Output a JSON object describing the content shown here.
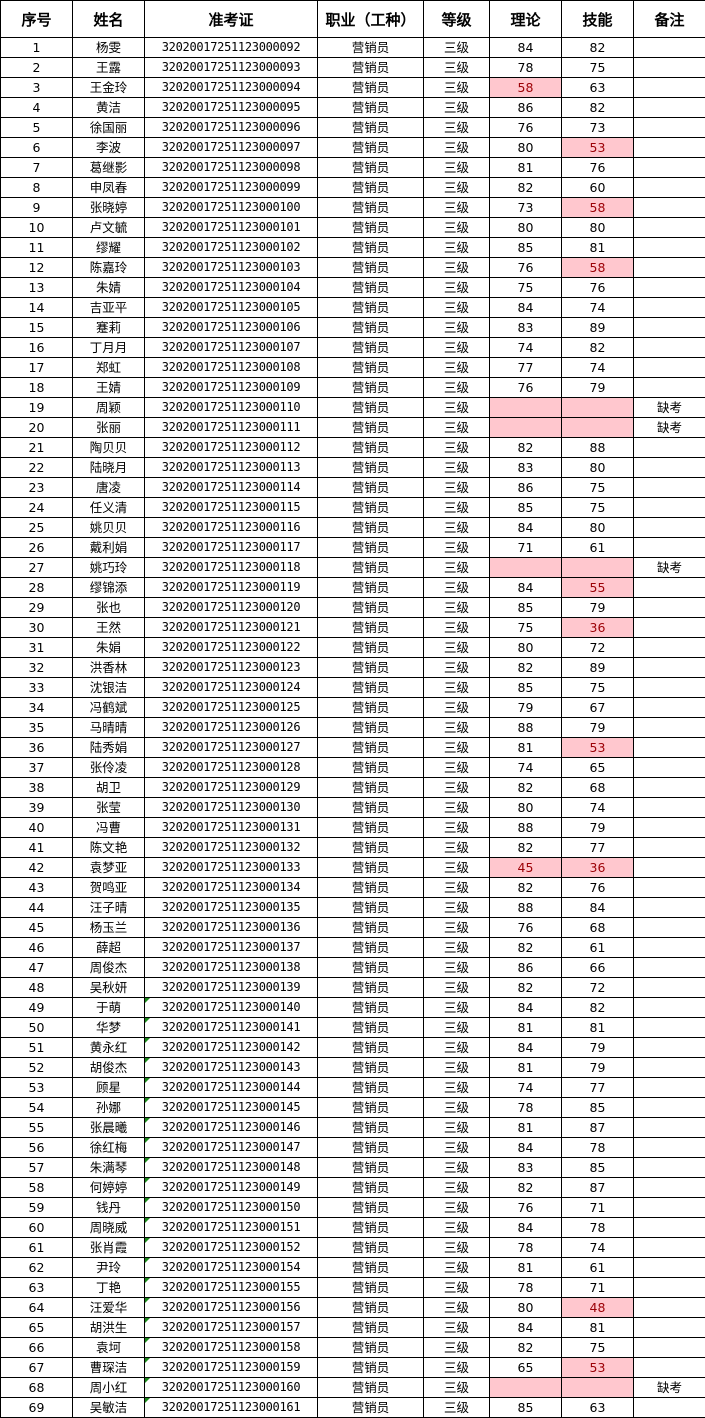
{
  "headers": [
    "序号",
    "姓名",
    "准考证",
    "职业（工种）",
    "等级",
    "理论",
    "技能",
    "备注"
  ],
  "colors": {
    "fail_fill": "#FFC7CE",
    "fail_text": "#9C0006",
    "text_number_marker": "#1a8a1a"
  },
  "text_number_marker_rows": [
    49,
    50,
    51,
    52,
    53,
    54,
    55,
    56,
    57,
    58,
    59,
    60,
    61,
    62,
    63,
    64,
    65,
    66,
    67,
    68,
    69
  ],
  "rows": [
    [
      "1",
      "杨雯",
      "32020017251123000092",
      "营销员",
      "三级",
      "84",
      "82",
      ""
    ],
    [
      "2",
      "王露",
      "32020017251123000093",
      "营销员",
      "三级",
      "78",
      "75",
      ""
    ],
    [
      "3",
      "王金玲",
      "32020017251123000094",
      "营销员",
      "三级",
      "58",
      "63",
      ""
    ],
    [
      "4",
      "黄洁",
      "32020017251123000095",
      "营销员",
      "三级",
      "86",
      "82",
      ""
    ],
    [
      "5",
      "徐国丽",
      "32020017251123000096",
      "营销员",
      "三级",
      "76",
      "73",
      ""
    ],
    [
      "6",
      "李波",
      "32020017251123000097",
      "营销员",
      "三级",
      "80",
      "53",
      ""
    ],
    [
      "7",
      "葛继影",
      "32020017251123000098",
      "营销员",
      "三级",
      "81",
      "76",
      ""
    ],
    [
      "8",
      "申凤春",
      "32020017251123000099",
      "营销员",
      "三级",
      "82",
      "60",
      ""
    ],
    [
      "9",
      "张晓婷",
      "32020017251123000100",
      "营销员",
      "三级",
      "73",
      "58",
      ""
    ],
    [
      "10",
      "卢文毓",
      "32020017251123000101",
      "营销员",
      "三级",
      "80",
      "80",
      ""
    ],
    [
      "11",
      "缪耀",
      "32020017251123000102",
      "营销员",
      "三级",
      "85",
      "81",
      ""
    ],
    [
      "12",
      "陈嘉玲",
      "32020017251123000103",
      "营销员",
      "三级",
      "76",
      "58",
      ""
    ],
    [
      "13",
      "朱婧",
      "32020017251123000104",
      "营销员",
      "三级",
      "75",
      "76",
      ""
    ],
    [
      "14",
      "吉亚平",
      "32020017251123000105",
      "营销员",
      "三级",
      "84",
      "74",
      ""
    ],
    [
      "15",
      "蹇莉",
      "32020017251123000106",
      "营销员",
      "三级",
      "83",
      "89",
      ""
    ],
    [
      "16",
      "丁月月",
      "32020017251123000107",
      "营销员",
      "三级",
      "74",
      "82",
      ""
    ],
    [
      "17",
      "郑虹",
      "32020017251123000108",
      "营销员",
      "三级",
      "77",
      "74",
      ""
    ],
    [
      "18",
      "王婧",
      "32020017251123000109",
      "营销员",
      "三级",
      "76",
      "79",
      ""
    ],
    [
      "19",
      "周颖",
      "32020017251123000110",
      "营销员",
      "三级",
      "",
      "",
      "缺考"
    ],
    [
      "20",
      "张丽",
      "32020017251123000111",
      "营销员",
      "三级",
      "",
      "",
      "缺考"
    ],
    [
      "21",
      "陶贝贝",
      "32020017251123000112",
      "营销员",
      "三级",
      "82",
      "88",
      ""
    ],
    [
      "22",
      "陆晓月",
      "32020017251123000113",
      "营销员",
      "三级",
      "83",
      "80",
      ""
    ],
    [
      "23",
      "唐凌",
      "32020017251123000114",
      "营销员",
      "三级",
      "86",
      "75",
      ""
    ],
    [
      "24",
      "任义清",
      "32020017251123000115",
      "营销员",
      "三级",
      "85",
      "75",
      ""
    ],
    [
      "25",
      "姚贝贝",
      "32020017251123000116",
      "营销员",
      "三级",
      "84",
      "80",
      ""
    ],
    [
      "26",
      "戴利娟",
      "32020017251123000117",
      "营销员",
      "三级",
      "71",
      "61",
      ""
    ],
    [
      "27",
      "姚巧玲",
      "32020017251123000118",
      "营销员",
      "三级",
      "",
      "",
      "缺考"
    ],
    [
      "28",
      "缪锦添",
      "32020017251123000119",
      "营销员",
      "三级",
      "84",
      "55",
      ""
    ],
    [
      "29",
      "张也",
      "32020017251123000120",
      "营销员",
      "三级",
      "85",
      "79",
      ""
    ],
    [
      "30",
      "王然",
      "32020017251123000121",
      "营销员",
      "三级",
      "75",
      "36",
      ""
    ],
    [
      "31",
      "朱娟",
      "32020017251123000122",
      "营销员",
      "三级",
      "80",
      "72",
      ""
    ],
    [
      "32",
      "洪香林",
      "32020017251123000123",
      "营销员",
      "三级",
      "82",
      "89",
      ""
    ],
    [
      "33",
      "沈银洁",
      "32020017251123000124",
      "营销员",
      "三级",
      "85",
      "75",
      ""
    ],
    [
      "34",
      "冯鹤斌",
      "32020017251123000125",
      "营销员",
      "三级",
      "79",
      "67",
      ""
    ],
    [
      "35",
      "马晴晴",
      "32020017251123000126",
      "营销员",
      "三级",
      "88",
      "79",
      ""
    ],
    [
      "36",
      "陆秀娟",
      "32020017251123000127",
      "营销员",
      "三级",
      "81",
      "53",
      ""
    ],
    [
      "37",
      "张伶凌",
      "32020017251123000128",
      "营销员",
      "三级",
      "74",
      "65",
      ""
    ],
    [
      "38",
      "胡卫",
      "32020017251123000129",
      "营销员",
      "三级",
      "82",
      "68",
      ""
    ],
    [
      "39",
      "张莹",
      "32020017251123000130",
      "营销员",
      "三级",
      "80",
      "74",
      ""
    ],
    [
      "40",
      "冯曹",
      "32020017251123000131",
      "营销员",
      "三级",
      "88",
      "79",
      ""
    ],
    [
      "41",
      "陈文艳",
      "32020017251123000132",
      "营销员",
      "三级",
      "82",
      "77",
      ""
    ],
    [
      "42",
      "袁梦亚",
      "32020017251123000133",
      "营销员",
      "三级",
      "45",
      "36",
      ""
    ],
    [
      "43",
      "贺鸣亚",
      "32020017251123000134",
      "营销员",
      "三级",
      "82",
      "76",
      ""
    ],
    [
      "44",
      "汪子晴",
      "32020017251123000135",
      "营销员",
      "三级",
      "88",
      "84",
      ""
    ],
    [
      "45",
      "杨玉兰",
      "32020017251123000136",
      "营销员",
      "三级",
      "76",
      "68",
      ""
    ],
    [
      "46",
      "薛超",
      "32020017251123000137",
      "营销员",
      "三级",
      "82",
      "61",
      ""
    ],
    [
      "47",
      "周俊杰",
      "32020017251123000138",
      "营销员",
      "三级",
      "86",
      "66",
      ""
    ],
    [
      "48",
      "吴秋妍",
      "32020017251123000139",
      "营销员",
      "三级",
      "82",
      "72",
      ""
    ],
    [
      "49",
      "于萌",
      "32020017251123000140",
      "营销员",
      "三级",
      "84",
      "82",
      ""
    ],
    [
      "50",
      "华梦",
      "32020017251123000141",
      "营销员",
      "三级",
      "81",
      "81",
      ""
    ],
    [
      "51",
      "黄永红",
      "32020017251123000142",
      "营销员",
      "三级",
      "84",
      "79",
      ""
    ],
    [
      "52",
      "胡俊杰",
      "32020017251123000143",
      "营销员",
      "三级",
      "81",
      "79",
      ""
    ],
    [
      "53",
      "顾星",
      "32020017251123000144",
      "营销员",
      "三级",
      "74",
      "77",
      ""
    ],
    [
      "54",
      "孙娜",
      "32020017251123000145",
      "营销员",
      "三级",
      "78",
      "85",
      ""
    ],
    [
      "55",
      "张晨曦",
      "32020017251123000146",
      "营销员",
      "三级",
      "81",
      "87",
      ""
    ],
    [
      "56",
      "徐红梅",
      "32020017251123000147",
      "营销员",
      "三级",
      "84",
      "78",
      ""
    ],
    [
      "57",
      "朱满琴",
      "32020017251123000148",
      "营销员",
      "三级",
      "83",
      "85",
      ""
    ],
    [
      "58",
      "何婷婷",
      "32020017251123000149",
      "营销员",
      "三级",
      "82",
      "87",
      ""
    ],
    [
      "59",
      "钱丹",
      "32020017251123000150",
      "营销员",
      "三级",
      "76",
      "71",
      ""
    ],
    [
      "60",
      "周晓威",
      "32020017251123000151",
      "营销员",
      "三级",
      "84",
      "78",
      ""
    ],
    [
      "61",
      "张肖霞",
      "32020017251123000152",
      "营销员",
      "三级",
      "78",
      "74",
      ""
    ],
    [
      "62",
      "尹玲",
      "32020017251123000154",
      "营销员",
      "三级",
      "81",
      "61",
      ""
    ],
    [
      "63",
      "丁艳",
      "32020017251123000155",
      "营销员",
      "三级",
      "78",
      "71",
      ""
    ],
    [
      "64",
      "汪爱华",
      "32020017251123000156",
      "营销员",
      "三级",
      "80",
      "48",
      ""
    ],
    [
      "65",
      "胡洪生",
      "32020017251123000157",
      "营销员",
      "三级",
      "84",
      "81",
      ""
    ],
    [
      "66",
      "袁坷",
      "32020017251123000158",
      "营销员",
      "三级",
      "82",
      "75",
      ""
    ],
    [
      "67",
      "曹琛洁",
      "32020017251123000159",
      "营销员",
      "三级",
      "65",
      "53",
      ""
    ],
    [
      "68",
      "周小红",
      "32020017251123000160",
      "营销员",
      "三级",
      "",
      "",
      "缺考"
    ],
    [
      "69",
      "吴敏洁",
      "32020017251123000161",
      "营销员",
      "三级",
      "85",
      "63",
      ""
    ]
  ]
}
